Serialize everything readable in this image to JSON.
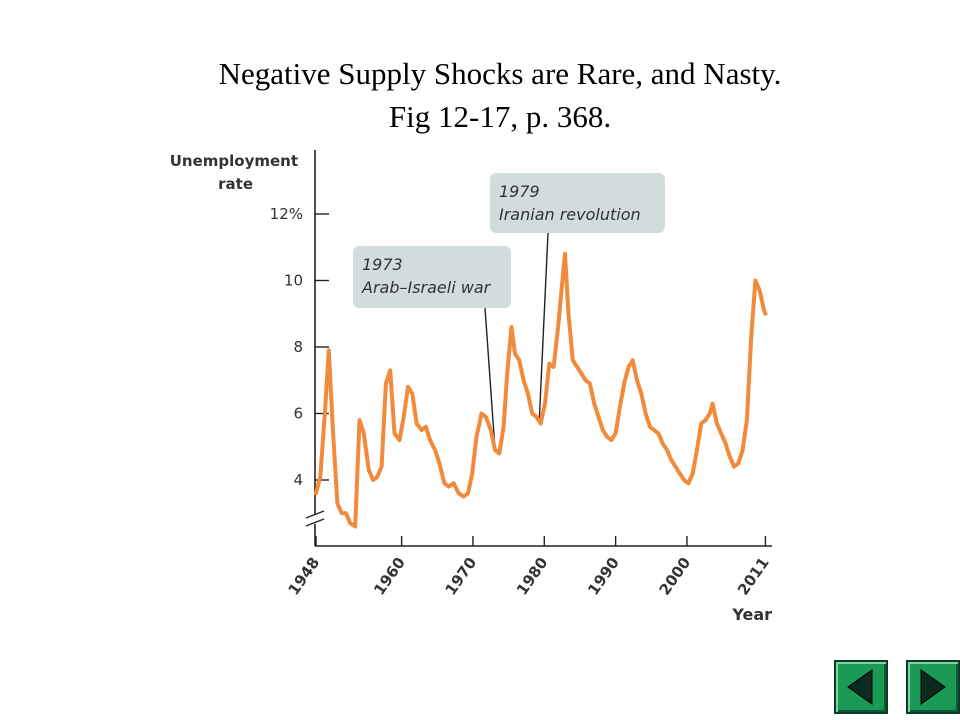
{
  "slide": {
    "title_line1": "Negative Supply Shocks are Rare, and Nasty.",
    "title_line2": "Fig 12-17, p. 368."
  },
  "nav": {
    "prev_icon": "triangle-left-icon",
    "next_icon": "triangle-right-icon",
    "button_color": "#1a9a55"
  },
  "chart_data": {
    "type": "line",
    "ylabel": "Unemployment rate",
    "xlabel": "Year",
    "yticks": [
      4,
      6,
      8,
      10,
      12
    ],
    "ytick_labels": [
      "4",
      "6",
      "8",
      "10",
      "12%"
    ],
    "ylim": [
      2.5,
      13.5
    ],
    "xticks": [
      1948,
      1960,
      1970,
      1980,
      1990,
      2000,
      2011
    ],
    "xlim": [
      1948,
      2011.5
    ],
    "axis_break": true,
    "grid": false,
    "line_color": "#f28a3c",
    "series": [
      {
        "x": [
          1948,
          1948.6,
          1949.3,
          1949.8,
          1950.4,
          1951,
          1951.6,
          1952.2,
          1952.8,
          1953.5,
          1954.1,
          1954.7,
          1955.4,
          1956,
          1956.6,
          1957.2,
          1957.8,
          1958.4,
          1959,
          1959.7,
          1960.3,
          1960.9,
          1961.5,
          1962.1,
          1962.8,
          1963.4,
          1964,
          1964.7,
          1965.3,
          1966,
          1966.6,
          1967.3,
          1968,
          1968.7,
          1969.3,
          1969.9,
          1970.5,
          1971.2,
          1971.8,
          1972.5,
          1973.1,
          1973.7,
          1974.3,
          1974.8,
          1975.4,
          1975.9,
          1976.5,
          1977.1,
          1977.7,
          1978.3,
          1978.9,
          1979.5,
          1980.1,
          1980.7,
          1981.3,
          1981.9,
          1982.5,
          1982.9,
          1983.4,
          1984,
          1984.6,
          1985.2,
          1985.8,
          1986.4,
          1987,
          1987.6,
          1988.2,
          1988.8,
          1989.4,
          1990,
          1990.6,
          1991.2,
          1991.8,
          1992.4,
          1993,
          1993.6,
          1994.2,
          1994.8,
          1995.4,
          1996,
          1996.6,
          1997.2,
          1997.8,
          1998.4,
          1999,
          1999.6,
          2000.2,
          2000.8,
          2001.4,
          2002,
          2002.6,
          2003.2,
          2003.6,
          2004.2,
          2004.8,
          2005.4,
          2006,
          2006.6,
          2007.2,
          2007.8,
          2008.4,
          2009,
          2009.6,
          2010.2,
          2010.8,
          2011
        ],
        "y": [
          3.6,
          4.1,
          6.2,
          7.9,
          5.4,
          3.3,
          3.0,
          3.0,
          2.7,
          2.6,
          5.8,
          5.4,
          4.3,
          4.0,
          4.1,
          4.4,
          6.9,
          7.3,
          5.4,
          5.2,
          5.9,
          6.8,
          6.6,
          5.7,
          5.5,
          5.6,
          5.2,
          4.9,
          4.5,
          3.9,
          3.8,
          3.9,
          3.6,
          3.5,
          3.6,
          4.2,
          5.3,
          6.0,
          5.9,
          5.5,
          4.9,
          4.8,
          5.6,
          7.2,
          8.6,
          7.8,
          7.6,
          7.0,
          6.6,
          6.0,
          5.9,
          5.7,
          6.3,
          7.5,
          7.4,
          8.5,
          9.9,
          10.8,
          9.0,
          7.6,
          7.4,
          7.2,
          7.0,
          6.9,
          6.3,
          5.9,
          5.5,
          5.3,
          5.2,
          5.4,
          6.2,
          6.9,
          7.4,
          7.6,
          7.0,
          6.6,
          6.0,
          5.6,
          5.5,
          5.4,
          5.1,
          4.9,
          4.6,
          4.4,
          4.2,
          4.0,
          3.9,
          4.2,
          4.9,
          5.7,
          5.8,
          6.0,
          6.3,
          5.7,
          5.4,
          5.1,
          4.7,
          4.4,
          4.5,
          4.9,
          5.8,
          8.3,
          10.0,
          9.7,
          9.1,
          9.0
        ]
      }
    ],
    "annotations": [
      {
        "line1": "1973",
        "line2": "Arab–Israeli war",
        "year": 1973.1,
        "value": 4.9
      },
      {
        "line1": "1979",
        "line2": "Iranian revolution",
        "year": 1979.3,
        "value": 5.8
      }
    ]
  }
}
